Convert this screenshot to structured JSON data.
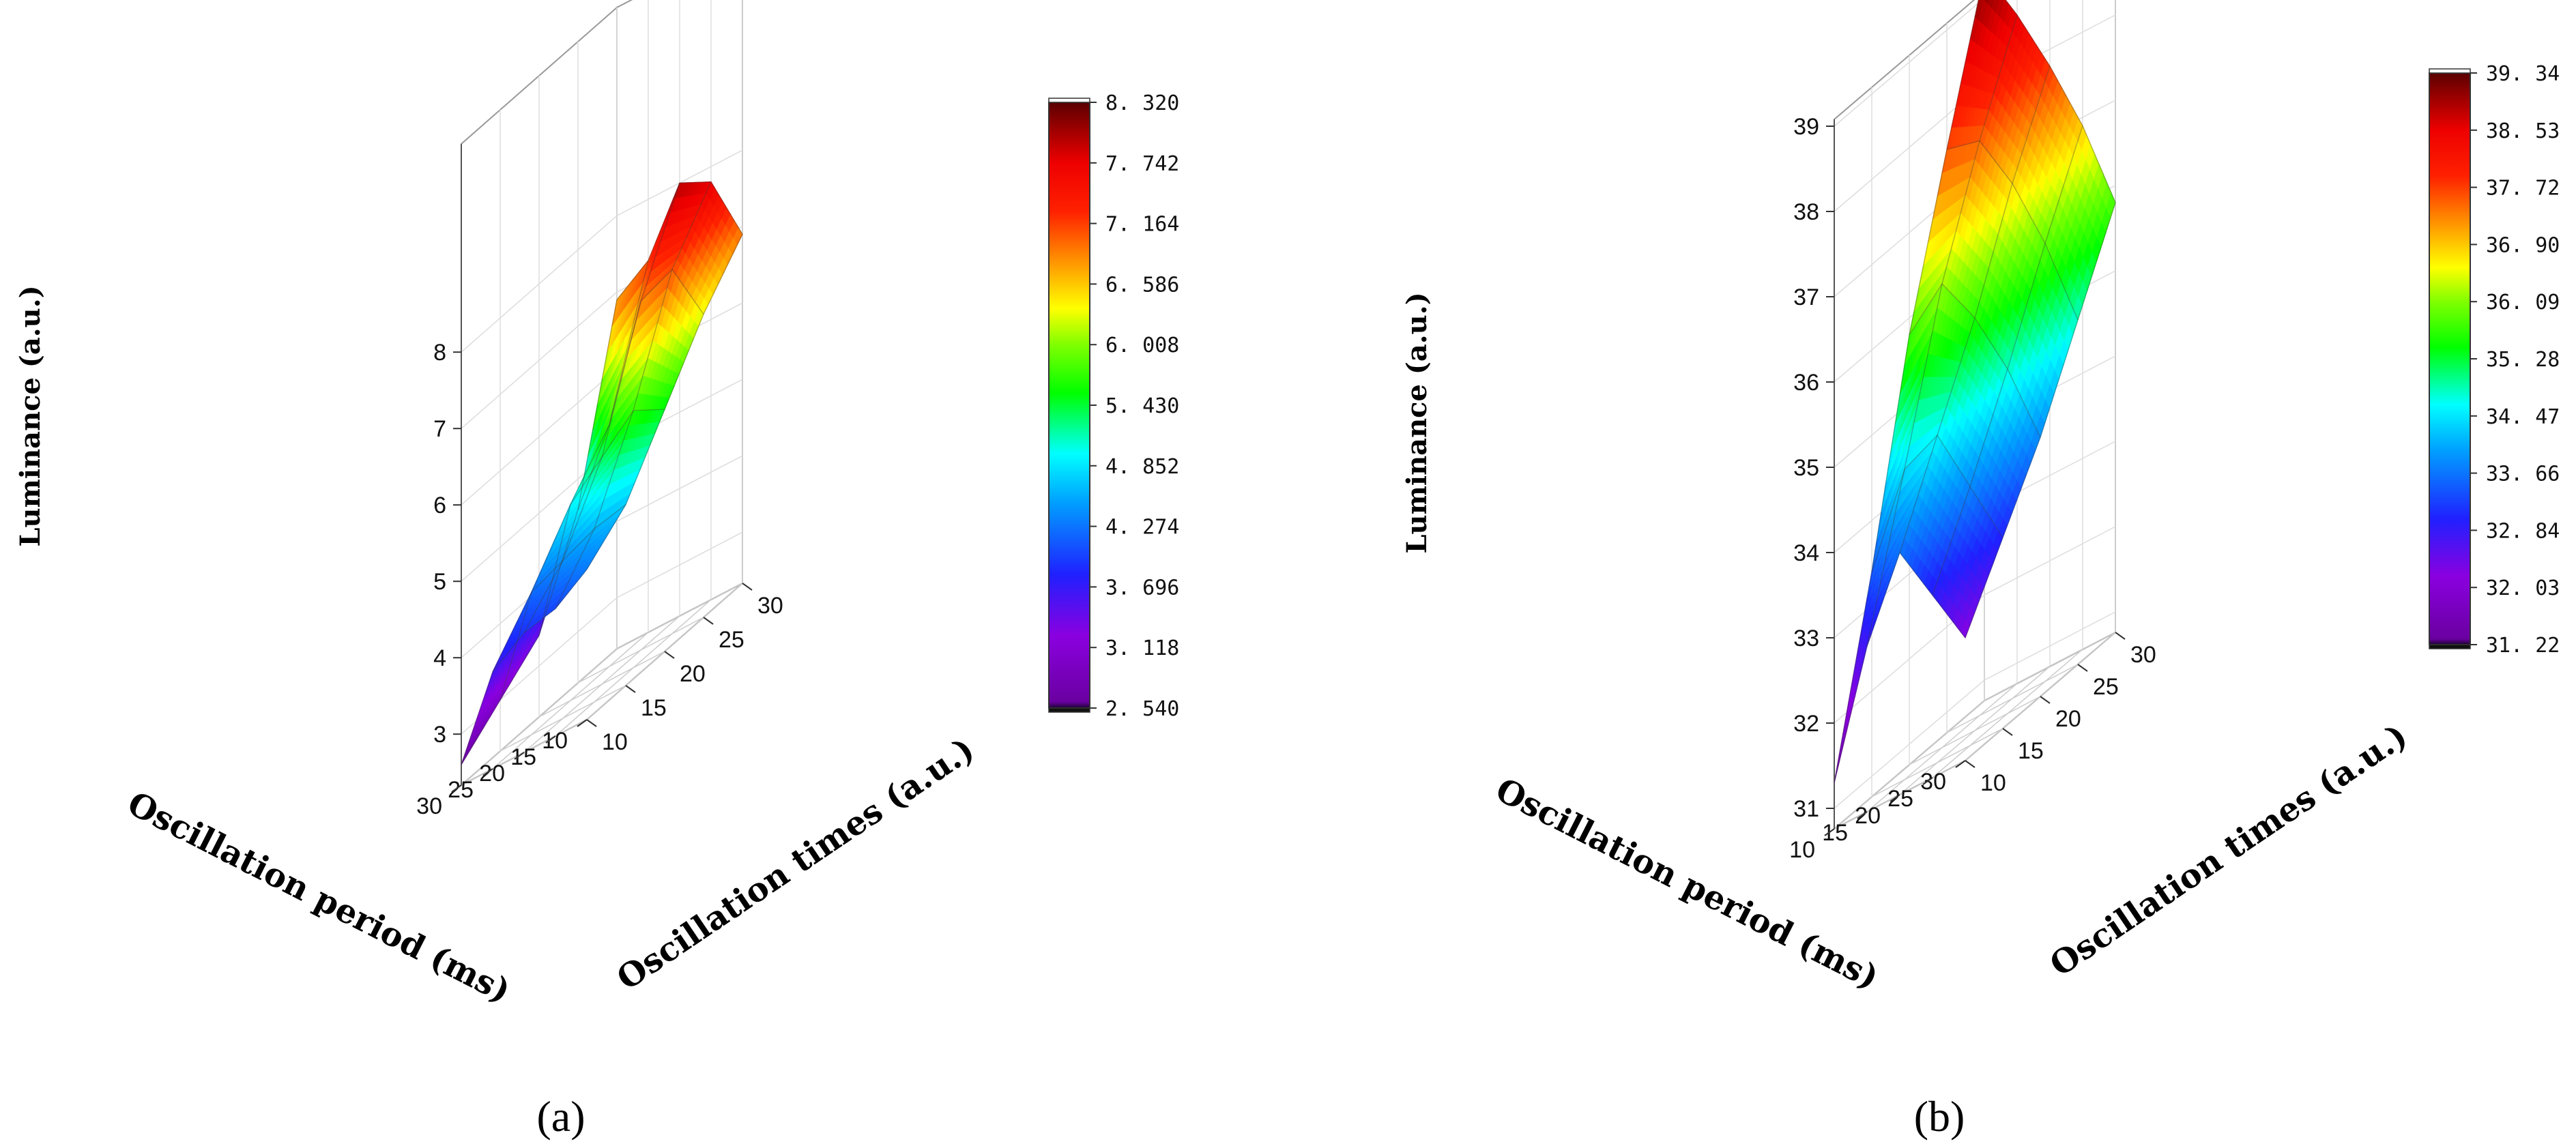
{
  "chart_data": [
    {
      "type": "surface3d",
      "panel_label": "(a)",
      "xlabel": "Oscillation period (ms)",
      "ylabel": "Oscillation times (a.u.)",
      "zlabel": "Luminance (a.u.)",
      "x_ticks": [
        10,
        15,
        20,
        25,
        30
      ],
      "y_ticks": [
        10,
        15,
        20,
        25,
        30
      ],
      "z_ticks": [
        3,
        4,
        5,
        6,
        7,
        8
      ],
      "zlim": [
        2.54,
        8.32
      ],
      "x": [
        10,
        15,
        20,
        25,
        30
      ],
      "y": [
        10,
        15,
        20,
        25,
        30
      ],
      "z": [
        [
          4.3,
          4.7,
          5.5,
          6.3,
          6.9
        ],
        [
          4.0,
          4.6,
          5.7,
          7.1,
          7.8
        ],
        [
          3.9,
          4.4,
          5.3,
          6.9,
          8.0
        ],
        [
          3.6,
          4.2,
          4.9,
          5.5,
          7.2
        ],
        [
          2.6,
          3.0,
          3.4,
          4.6,
          6.9
        ]
      ],
      "colorbar_labels": [
        "8. 320",
        "7. 742",
        "7. 164",
        "6. 586",
        "6. 008",
        "5. 430",
        "4. 852",
        "4. 274",
        "3. 696",
        "3. 118",
        "2. 540"
      ]
    },
    {
      "type": "surface3d",
      "panel_label": "(b)",
      "xlabel": "Oscillation period (ms)",
      "ylabel": "Oscillation times (a.u.)",
      "zlabel": "Luminance (a.u.)",
      "x_ticks": [
        30,
        25,
        20,
        15,
        10
      ],
      "y_ticks": [
        10,
        15,
        20,
        25,
        30
      ],
      "z_ticks": [
        31,
        32,
        33,
        34,
        35,
        36,
        37,
        38,
        39
      ],
      "zlim": [
        31.22,
        39.34
      ],
      "x": [
        30,
        25,
        20,
        15,
        10
      ],
      "y": [
        10,
        15,
        20,
        25,
        30
      ],
      "z": [
        [
          32.2,
          33.0,
          33.8,
          34.8,
          35.8
        ],
        [
          32.9,
          33.8,
          34.8,
          35.9,
          36.9
        ],
        [
          33.6,
          34.6,
          35.6,
          36.8,
          37.8
        ],
        [
          32.7,
          34.4,
          36.2,
          37.5,
          38.6
        ],
        [
          31.3,
          33.4,
          35.8,
          37.6,
          39.3
        ]
      ],
      "colorbar_labels": [
        "39. 34",
        "38. 53",
        "37. 72",
        "36. 90",
        "36. 09",
        "35. 28",
        "34. 47",
        "33. 66",
        "32. 84",
        "32. 03",
        "31. 22"
      ]
    }
  ]
}
